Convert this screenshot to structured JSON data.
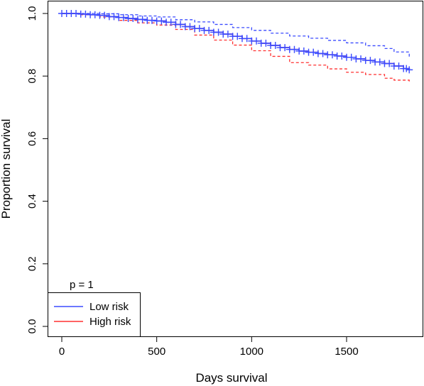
{
  "chart_data": {
    "type": "line",
    "xlabel": "Days survival",
    "ylabel": "Proportion survival",
    "xlim": [
      0,
      1850
    ],
    "ylim": [
      0,
      1.0
    ],
    "x_ticks": [
      0,
      500,
      1000,
      1500
    ],
    "y_ticks": [
      0.0,
      0.2,
      0.4,
      0.6,
      0.8,
      1.0
    ],
    "annotation": "p = 1",
    "legend_position": "bottom-left",
    "series": [
      {
        "name": "Low risk",
        "color": "#3b4bff",
        "x": [
          0,
          50,
          100,
          150,
          200,
          250,
          300,
          350,
          400,
          450,
          500,
          550,
          600,
          650,
          700,
          750,
          800,
          850,
          900,
          950,
          1000,
          1050,
          1100,
          1150,
          1200,
          1250,
          1300,
          1350,
          1400,
          1450,
          1500,
          1550,
          1600,
          1650,
          1700,
          1750,
          1800,
          1830
        ],
        "y": [
          1.0,
          1.0,
          0.998,
          0.996,
          0.994,
          0.99,
          0.987,
          0.984,
          0.981,
          0.978,
          0.976,
          0.972,
          0.965,
          0.958,
          0.952,
          0.946,
          0.94,
          0.934,
          0.927,
          0.92,
          0.912,
          0.905,
          0.898,
          0.891,
          0.885,
          0.88,
          0.876,
          0.872,
          0.868,
          0.864,
          0.86,
          0.855,
          0.85,
          0.845,
          0.84,
          0.832,
          0.824,
          0.82
        ]
      },
      {
        "name": "High risk",
        "color": "#ff3030",
        "x": [
          0,
          50,
          100,
          150,
          200,
          250,
          300,
          350,
          400,
          450,
          500,
          550,
          600,
          650,
          700,
          750,
          800,
          850,
          900,
          950,
          1000,
          1050,
          1100,
          1150,
          1200,
          1250,
          1300,
          1350,
          1400,
          1450,
          1500,
          1550,
          1600,
          1650,
          1700,
          1750,
          1800,
          1830
        ],
        "y": [
          1.0,
          1.0,
          0.998,
          0.996,
          0.994,
          0.99,
          0.987,
          0.984,
          0.981,
          0.978,
          0.976,
          0.972,
          0.965,
          0.958,
          0.952,
          0.946,
          0.94,
          0.934,
          0.927,
          0.92,
          0.912,
          0.905,
          0.898,
          0.891,
          0.885,
          0.88,
          0.876,
          0.872,
          0.868,
          0.864,
          0.86,
          0.855,
          0.85,
          0.845,
          0.84,
          0.832,
          0.824,
          0.82
        ]
      }
    ],
    "confidence_band": {
      "x": [
        0,
        100,
        200,
        300,
        400,
        500,
        600,
        700,
        800,
        900,
        1000,
        1100,
        1200,
        1300,
        1400,
        1500,
        1600,
        1700,
        1750,
        1830
      ],
      "upper": [
        1.0,
        1.0,
        0.999,
        0.996,
        0.992,
        0.989,
        0.98,
        0.973,
        0.965,
        0.955,
        0.946,
        0.937,
        0.928,
        0.921,
        0.914,
        0.906,
        0.897,
        0.888,
        0.877,
        0.86
      ],
      "lower": [
        1.0,
        0.996,
        0.989,
        0.978,
        0.97,
        0.963,
        0.949,
        0.931,
        0.915,
        0.899,
        0.881,
        0.863,
        0.843,
        0.835,
        0.823,
        0.812,
        0.805,
        0.793,
        0.787,
        0.778
      ],
      "upper_color": "#3b4bff",
      "lower_color": "#ff3030"
    }
  }
}
